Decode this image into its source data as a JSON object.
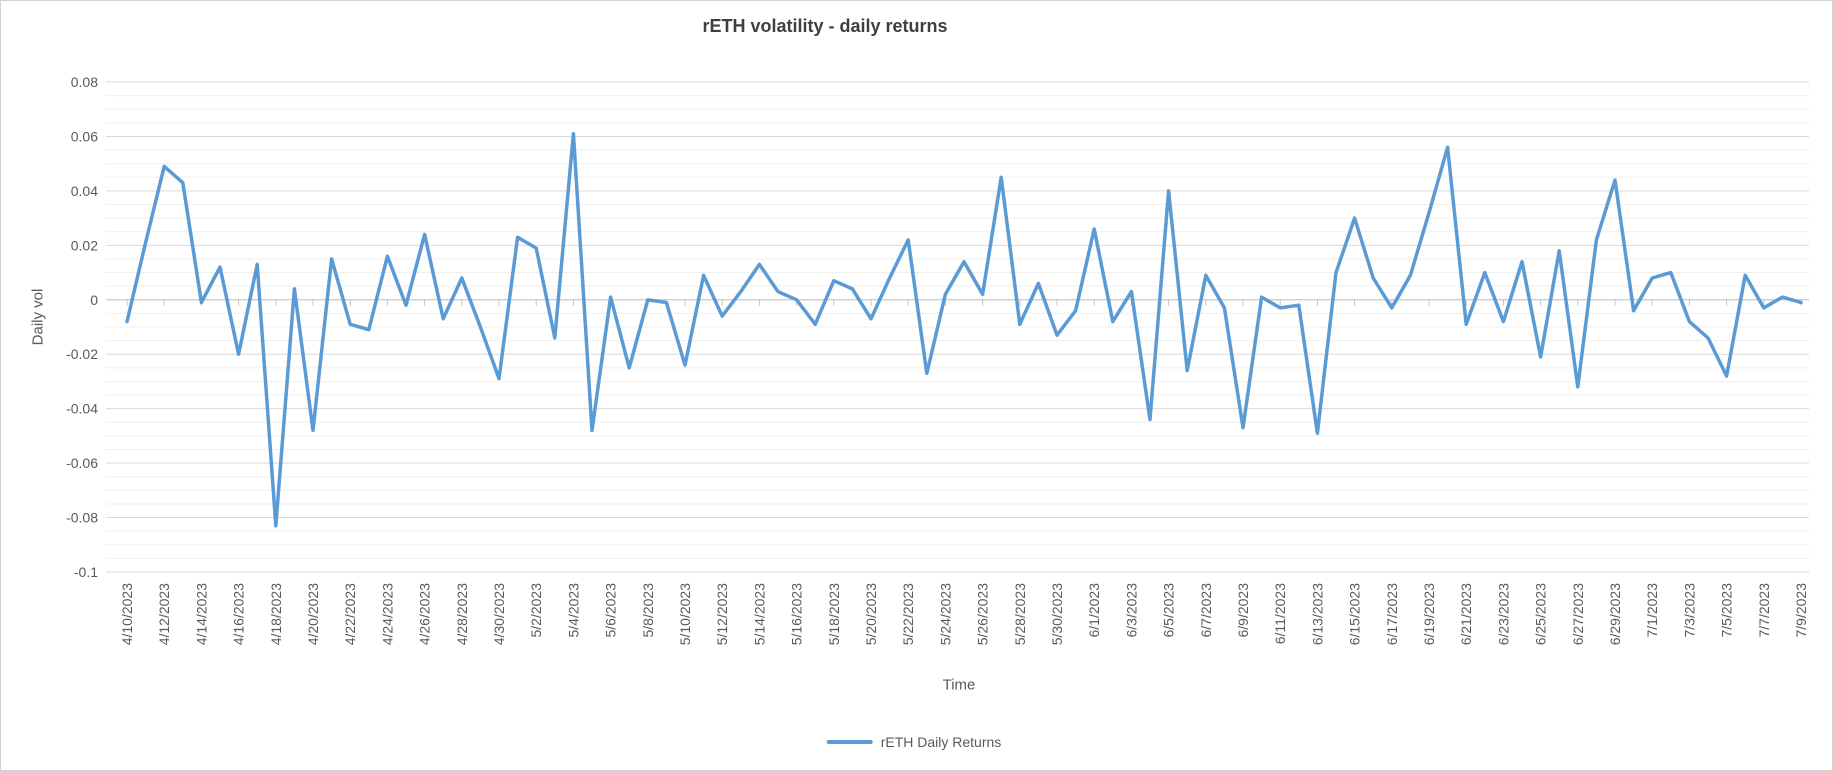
{
  "title": "rETH volatility - daily returns",
  "axes": {
    "y_title": "Daily vol",
    "x_title": "Time",
    "y_tick_labels": [
      "0.08",
      "0.06",
      "0.04",
      "0.02",
      "0",
      "-0.02",
      "-0.04",
      "-0.06",
      "-0.08",
      "-0.1"
    ],
    "y_max": 0.08,
    "y_min": -0.1,
    "y_major_step": 0.02,
    "y_minor_step": 0.005,
    "x_label_every": 2
  },
  "legend": {
    "label": "rETH Daily Returns"
  },
  "colors": {
    "series_line": "#5B9BD5",
    "major_gridline": "#d9d9d9",
    "minor_gridline": "#efefef",
    "axis_line": "#c3c3c3",
    "tick_text": "#595959",
    "title_text": "#3f3f3f"
  },
  "chart_data": {
    "type": "line",
    "title": "rETH volatility - daily returns",
    "xlabel": "Time",
    "ylabel": "Daily vol",
    "ylim": [
      -0.1,
      0.08
    ],
    "grid": "major-and-minor-horizontal",
    "legend_position": "bottom",
    "series_name": "rETH Daily Returns",
    "x": [
      "4/10/2023",
      "4/11/2023",
      "4/12/2023",
      "4/13/2023",
      "4/14/2023",
      "4/15/2023",
      "4/16/2023",
      "4/17/2023",
      "4/18/2023",
      "4/19/2023",
      "4/20/2023",
      "4/21/2023",
      "4/22/2023",
      "4/23/2023",
      "4/24/2023",
      "4/25/2023",
      "4/26/2023",
      "4/27/2023",
      "4/28/2023",
      "4/29/2023",
      "4/30/2023",
      "5/1/2023",
      "5/2/2023",
      "5/3/2023",
      "5/4/2023",
      "5/5/2023",
      "5/6/2023",
      "5/7/2023",
      "5/8/2023",
      "5/9/2023",
      "5/10/2023",
      "5/11/2023",
      "5/12/2023",
      "5/13/2023",
      "5/14/2023",
      "5/15/2023",
      "5/16/2023",
      "5/17/2023",
      "5/18/2023",
      "5/19/2023",
      "5/20/2023",
      "5/21/2023",
      "5/22/2023",
      "5/23/2023",
      "5/24/2023",
      "5/25/2023",
      "5/26/2023",
      "5/27/2023",
      "5/28/2023",
      "5/29/2023",
      "5/30/2023",
      "5/31/2023",
      "6/1/2023",
      "6/2/2023",
      "6/3/2023",
      "6/4/2023",
      "6/5/2023",
      "6/6/2023",
      "6/7/2023",
      "6/8/2023",
      "6/9/2023",
      "6/10/2023",
      "6/11/2023",
      "6/12/2023",
      "6/13/2023",
      "6/14/2023",
      "6/15/2023",
      "6/16/2023",
      "6/17/2023",
      "6/18/2023",
      "6/19/2023",
      "6/20/2023",
      "6/21/2023",
      "6/22/2023",
      "6/23/2023",
      "6/24/2023",
      "6/25/2023",
      "6/26/2023",
      "6/27/2023",
      "6/28/2023",
      "6/29/2023",
      "6/30/2023",
      "7/1/2023",
      "7/2/2023",
      "7/3/2023",
      "7/4/2023",
      "7/5/2023",
      "7/6/2023",
      "7/7/2023",
      "7/8/2023",
      "7/9/2023"
    ],
    "values": [
      -0.008,
      0.021,
      0.049,
      0.043,
      -0.001,
      0.012,
      -0.02,
      0.013,
      -0.083,
      0.004,
      -0.048,
      0.015,
      -0.009,
      -0.011,
      0.016,
      -0.002,
      0.024,
      -0.007,
      0.008,
      -0.01,
      -0.029,
      0.023,
      0.019,
      -0.014,
      0.061,
      -0.048,
      0.001,
      -0.025,
      0.0,
      -0.001,
      -0.024,
      0.009,
      -0.006,
      0.003,
      0.013,
      0.003,
      0.0,
      -0.009,
      0.007,
      0.004,
      -0.007,
      0.008,
      0.022,
      -0.027,
      0.002,
      0.014,
      0.002,
      0.045,
      -0.009,
      0.006,
      -0.013,
      -0.004,
      0.026,
      -0.008,
      0.003,
      -0.044,
      0.04,
      -0.026,
      0.009,
      -0.003,
      -0.047,
      0.001,
      -0.003,
      -0.002,
      -0.049,
      0.01,
      0.03,
      0.008,
      -0.003,
      0.009,
      0.032,
      0.056,
      -0.009,
      0.01,
      -0.008,
      0.014,
      -0.021,
      0.018,
      -0.032,
      0.022,
      0.044,
      -0.004,
      0.008,
      0.01,
      -0.008,
      -0.014,
      -0.028,
      0.009,
      -0.003,
      0.001,
      -0.001
    ]
  }
}
